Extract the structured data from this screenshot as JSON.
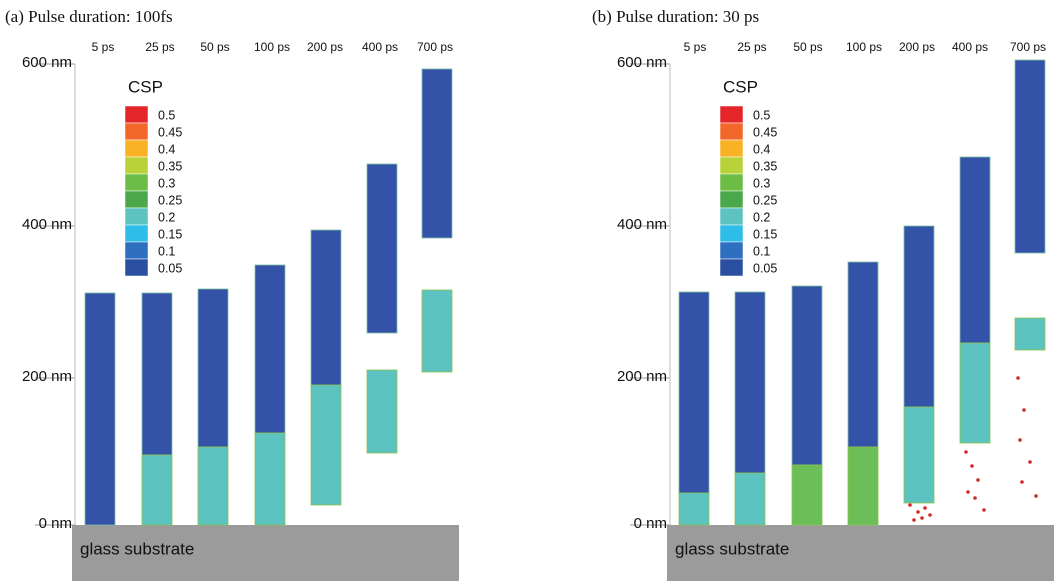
{
  "panels": [
    {
      "title": "(a) Pulse duration: 100fs",
      "times": [
        "5 ps",
        "25 ps",
        "50 ps",
        "100 ps",
        "200 ps",
        "400 ps",
        "700 ps"
      ],
      "y_ticks": [
        "0 nm",
        "200 nm",
        "400 nm",
        "600 nm"
      ],
      "colorbar": {
        "title": "CSP",
        "labels": [
          "0.5",
          "0.45",
          "0.4",
          "0.35",
          "0.3",
          "0.25",
          "0.2",
          "0.15",
          "0.1",
          "0.05"
        ]
      },
      "substrate": "glass substrate"
    },
    {
      "title": "(b) Pulse duration: 30 ps",
      "times": [
        "5 ps",
        "25 ps",
        "50 ps",
        "100 ps",
        "200 ps",
        "400 ps",
        "700 ps"
      ],
      "y_ticks": [
        "0 nm",
        "200 nm",
        "400 nm",
        "600 nm"
      ],
      "colorbar": {
        "title": "CSP",
        "labels": [
          "0.5",
          "0.45",
          "0.4",
          "0.35",
          "0.3",
          "0.25",
          "0.2",
          "0.15",
          "0.1",
          "0.05"
        ]
      },
      "substrate": "glass substrate"
    }
  ]
}
